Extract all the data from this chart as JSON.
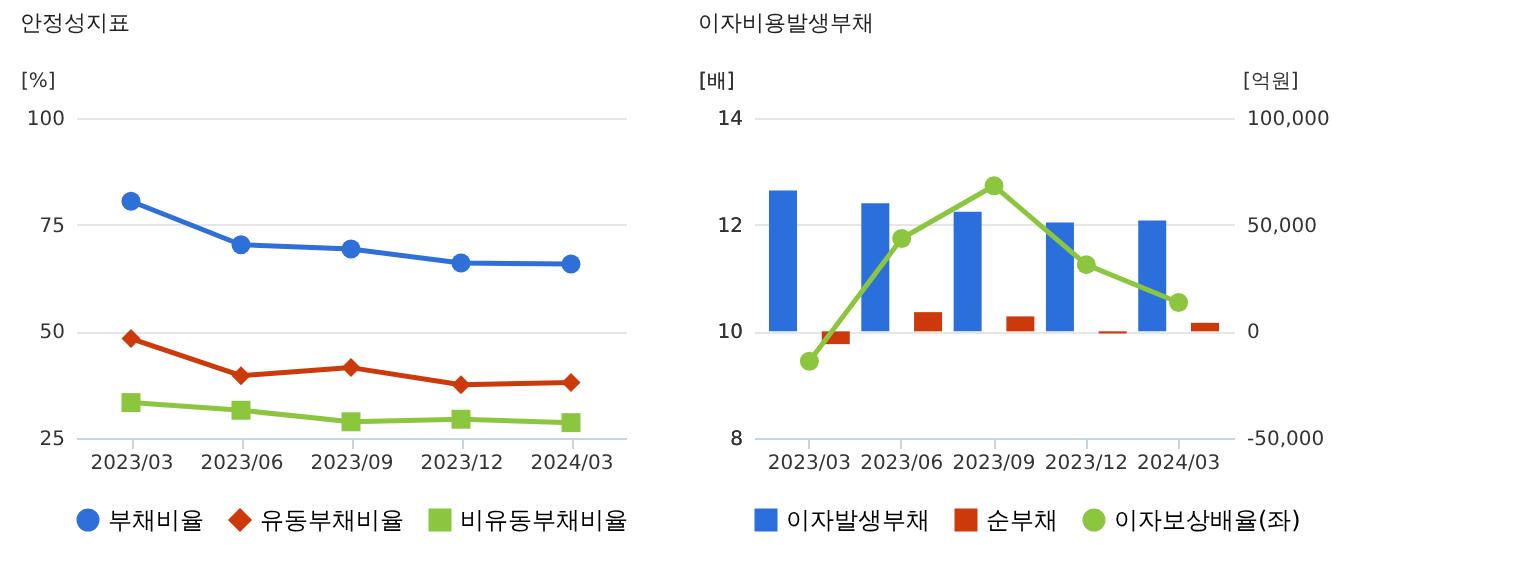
{
  "chart_data": [
    {
      "type": "line",
      "title": "안정성지표",
      "ylabel": "[%]",
      "categories": [
        "2023/03",
        "2023/06",
        "2023/09",
        "2023/12",
        "2024/03"
      ],
      "series": [
        {
          "name": "부채비율",
          "color": "#2e6fd8",
          "marker": "circle",
          "values": [
            80.5,
            70.3,
            69.3,
            66.0,
            65.8
          ]
        },
        {
          "name": "유동부채비율",
          "color": "#cc3a0c",
          "marker": "diamond",
          "values": [
            48.3,
            39.6,
            41.5,
            37.5,
            38.0
          ]
        },
        {
          "name": "비유동부채비율",
          "color": "#8cc63f",
          "marker": "square",
          "values": [
            33.3,
            31.5,
            28.8,
            29.4,
            28.6
          ]
        }
      ],
      "ylim": [
        25,
        100
      ],
      "yticks": [
        25,
        50,
        75,
        100
      ],
      "grid": "y",
      "legend": "bottom"
    },
    {
      "type": "bar",
      "title": "이자비용발생부채",
      "ylabel": "[배]",
      "y2label": "[억원]",
      "categories": [
        "2023/03",
        "2023/06",
        "2023/09",
        "2023/12",
        "2024/03"
      ],
      "series": [
        {
          "name": "이자발생부채",
          "type": "bar",
          "axis": "y2",
          "color": "#2a6fdb",
          "values": [
            66000,
            60000,
            56000,
            51000,
            52000
          ]
        },
        {
          "name": "순부채",
          "type": "bar",
          "axis": "y2",
          "color": "#cc3a0c",
          "values": [
            -6000,
            9000,
            7000,
            -1000,
            4000
          ]
        },
        {
          "name": "이자보상배율(좌)",
          "type": "line",
          "color": "#8cc63f",
          "marker": "circle",
          "values": [
            9.44,
            11.74,
            12.73,
            11.25,
            10.54
          ]
        }
      ],
      "ylim": [
        8,
        14
      ],
      "yticks": [
        8,
        10,
        12,
        14
      ],
      "y2lim": [
        -50000,
        100000
      ],
      "y2ticks": [
        {
          "value": -50000,
          "label": "-50,000"
        },
        0,
        {
          "value": 50000,
          "label": "50,000"
        },
        {
          "value": 100000,
          "label": "100,000"
        }
      ],
      "grid": "y",
      "legend": "bottom"
    }
  ]
}
